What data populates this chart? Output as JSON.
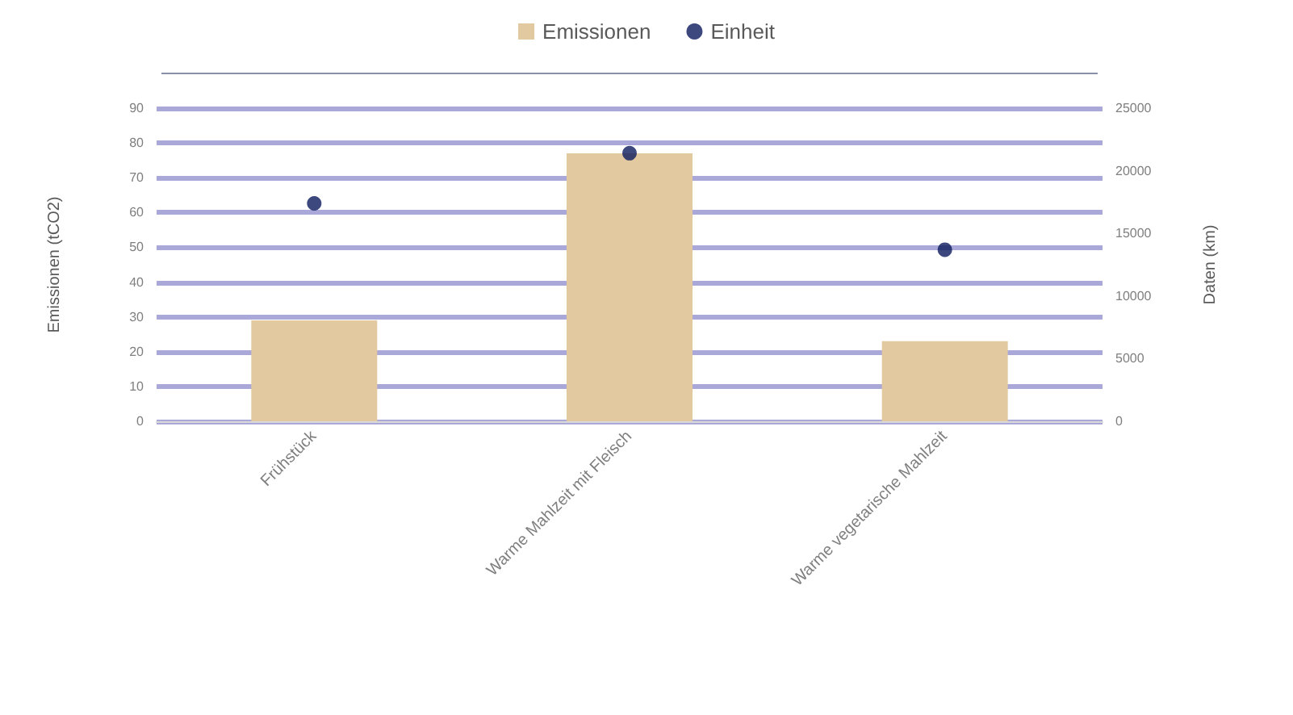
{
  "chart_data": {
    "type": "bar",
    "categories": [
      "Frühstück",
      "Warme Mahlzeit mit Fleisch",
      "Warme vegetarische Mahlzeit"
    ],
    "series": [
      {
        "name": "Emissionen",
        "color": "#e2c9a0",
        "values": [
          29,
          77,
          23
        ]
      },
      {
        "name": "Einheit",
        "type": "scatter",
        "axis": "y2",
        "color": "#0d1b5e",
        "values": [
          17400,
          21400,
          13700
        ]
      }
    ],
    "ylabel": "Emissionen (tCO2)",
    "y2label": "Daten (km)",
    "ylim": [
      0,
      90
    ],
    "yticks": [
      0,
      10,
      20,
      30,
      40,
      50,
      60,
      70,
      80,
      90
    ],
    "y2lim": [
      0,
      25000
    ],
    "y2ticks": [
      0,
      5000,
      10000,
      15000,
      20000,
      25000
    ],
    "grid": "y",
    "legend": "top",
    "marker": "circle"
  }
}
